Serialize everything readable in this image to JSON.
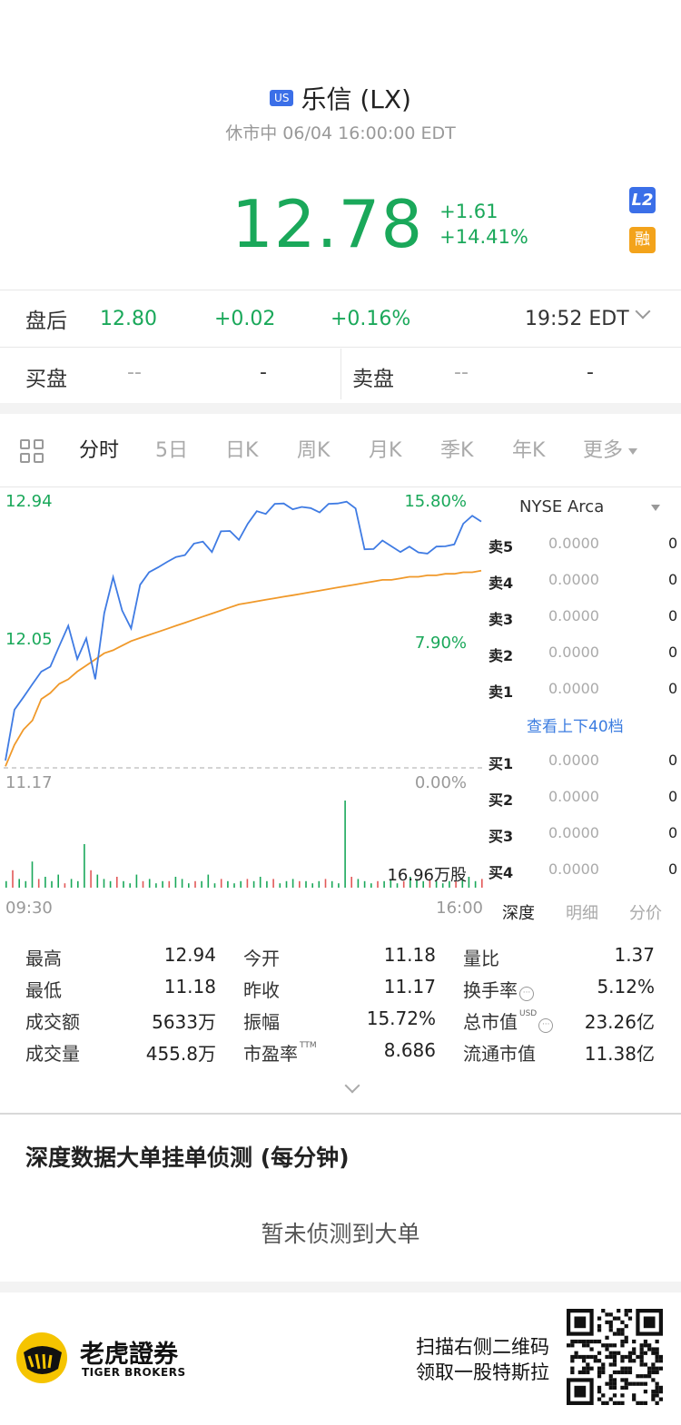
{
  "header": {
    "market_badge": "US",
    "title": "乐信 (LX)",
    "status": "休市中 06/04 16:00:00 EDT",
    "price": "12.78",
    "change": "+1.61",
    "change_pct": "+14.41%",
    "badge_l2": "L2",
    "badge_margin": "融"
  },
  "after_hours": {
    "label": "盘后",
    "price": "12.80",
    "change": "+0.02",
    "change_pct": "+0.16%",
    "time": "19:52 EDT"
  },
  "bid_ask": {
    "bid_label": "买盘",
    "bid_price": "--",
    "bid_size": "-",
    "ask_label": "卖盘",
    "ask_price": "--",
    "ask_size": "-"
  },
  "tabs": [
    {
      "label": "分时",
      "active": true
    },
    {
      "label": "5日"
    },
    {
      "label": "日K"
    },
    {
      "label": "周K"
    },
    {
      "label": "月K"
    },
    {
      "label": "季K"
    },
    {
      "label": "年K"
    },
    {
      "label": "更多"
    }
  ],
  "chart_labels": {
    "high": "12.94",
    "mid": "12.05",
    "low": "11.17",
    "high_pct": "15.80%",
    "mid_pct": "7.90%",
    "low_pct": "0.00%",
    "volume_label": "16.96万股",
    "time_start": "09:30",
    "time_end": "16:00"
  },
  "chart_data": {
    "type": "line",
    "ylim": [
      11.17,
      12.94
    ],
    "xlim": [
      "09:30",
      "16:00"
    ],
    "series": [
      {
        "color": "#3f7be3",
        "values": [
          11.2,
          11.55,
          11.65,
          11.7,
          11.8,
          11.85,
          11.95,
          12.1,
          11.9,
          12.0,
          11.75,
          12.2,
          12.4,
          12.2,
          12.1,
          12.35,
          12.45,
          12.5,
          12.5,
          12.55,
          12.58,
          12.62,
          12.65,
          12.6,
          12.7,
          12.72,
          12.68,
          12.75,
          12.85,
          12.85,
          12.88,
          12.9,
          12.88,
          12.86,
          12.87,
          12.86,
          12.88,
          12.9,
          12.93,
          12.85,
          12.6,
          12.62,
          12.64,
          12.62,
          12.6,
          12.6,
          12.58,
          12.59,
          12.6,
          12.62,
          12.65,
          12.75,
          12.82,
          12.8
        ]
      },
      {
        "color": "#f0992a",
        "values": [
          11.18,
          11.32,
          11.42,
          11.48,
          11.62,
          11.66,
          11.72,
          11.75,
          11.8,
          11.84,
          11.88,
          11.92,
          11.94,
          11.97,
          12.0,
          12.02,
          12.04,
          12.06,
          12.08,
          12.1,
          12.12,
          12.14,
          12.16,
          12.18,
          12.2,
          12.22,
          12.24,
          12.25,
          12.26,
          12.27,
          12.28,
          12.29,
          12.3,
          12.31,
          12.32,
          12.33,
          12.34,
          12.35,
          12.36,
          12.37,
          12.38,
          12.39,
          12.4,
          12.4,
          12.41,
          12.42,
          12.42,
          12.43,
          12.43,
          12.44,
          12.44,
          12.45,
          12.45,
          12.46
        ]
      }
    ],
    "volume": [
      3,
      8,
      4,
      3,
      12,
      4,
      5,
      3,
      6,
      2,
      4,
      3,
      20,
      8,
      6,
      4,
      3,
      5,
      3,
      2,
      6,
      3,
      4,
      2,
      3,
      3,
      5,
      4,
      2,
      3,
      3,
      6,
      2,
      4,
      3,
      2,
      3,
      4,
      3,
      5,
      3,
      4,
      2,
      3,
      4,
      3,
      3,
      2,
      3,
      4,
      3,
      2,
      40,
      5,
      4,
      3,
      2,
      3,
      3,
      4,
      2,
      3,
      5,
      4,
      3,
      4,
      3,
      2,
      3,
      3,
      4,
      5,
      3,
      4
    ]
  },
  "order_book": {
    "exchange": "NYSE Arca",
    "asks": [
      {
        "label": "卖5",
        "price": "0.0000",
        "qty": "0"
      },
      {
        "label": "卖4",
        "price": "0.0000",
        "qty": "0"
      },
      {
        "label": "卖3",
        "price": "0.0000",
        "qty": "0"
      },
      {
        "label": "卖2",
        "price": "0.0000",
        "qty": "0"
      },
      {
        "label": "卖1",
        "price": "0.0000",
        "qty": "0"
      }
    ],
    "more": "查看上下40档",
    "bids": [
      {
        "label": "买1",
        "price": "0.0000",
        "qty": "0"
      },
      {
        "label": "买2",
        "price": "0.0000",
        "qty": "0"
      },
      {
        "label": "买3",
        "price": "0.0000",
        "qty": "0"
      },
      {
        "label": "买4",
        "price": "0.0000",
        "qty": "0"
      }
    ],
    "tabs": [
      "深度",
      "明细",
      "分价"
    ]
  },
  "stats": {
    "high_k": "最高",
    "high_v": "12.94",
    "low_k": "最低",
    "low_v": "11.18",
    "turnover_k": "成交额",
    "turnover_v": "5633万",
    "volume_k": "成交量",
    "volume_v": "455.8万",
    "open_k": "今开",
    "open_v": "11.18",
    "prev_k": "昨收",
    "prev_v": "11.17",
    "amp_k": "振幅",
    "amp_v": "15.72%",
    "pe_k": "市盈率",
    "pe_sup": "TTM",
    "pe_v": "8.686",
    "vr_k": "量比",
    "vr_v": "1.37",
    "tr_k": "换手率",
    "tr_v": "5.12%",
    "mcap_k": "总市值",
    "mcap_sup": "USD",
    "mcap_v": "23.26亿",
    "float_k": "流通市值",
    "float_v": "11.38亿"
  },
  "big_order": {
    "title": "深度数据大单挂单侦测 (每分钟)",
    "empty": "暂未侦测到大单"
  },
  "footer": {
    "brand_cn": "老虎證券",
    "brand_en": "TIGER BROKERS",
    "promo_line1": "扫描右侧二维码",
    "promo_line2": "领取一股特斯拉"
  }
}
